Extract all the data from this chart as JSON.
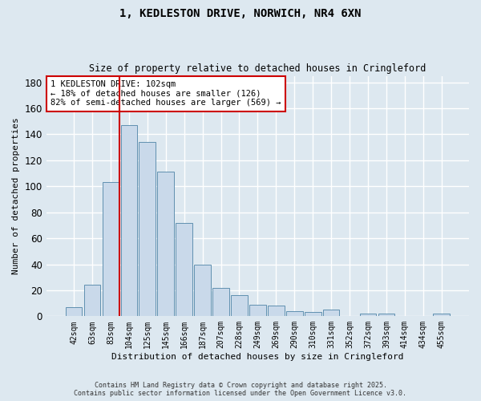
{
  "title": "1, KEDLESTON DRIVE, NORWICH, NR4 6XN",
  "subtitle": "Size of property relative to detached houses in Cringleford",
  "xlabel": "Distribution of detached houses by size in Cringleford",
  "ylabel": "Number of detached properties",
  "bin_labels": [
    "42sqm",
    "63sqm",
    "83sqm",
    "104sqm",
    "125sqm",
    "145sqm",
    "166sqm",
    "187sqm",
    "207sqm",
    "228sqm",
    "249sqm",
    "269sqm",
    "290sqm",
    "310sqm",
    "331sqm",
    "352sqm",
    "372sqm",
    "393sqm",
    "414sqm",
    "434sqm",
    "455sqm"
  ],
  "bar_values": [
    7,
    24,
    103,
    147,
    134,
    111,
    72,
    40,
    22,
    16,
    9,
    8,
    4,
    3,
    5,
    0,
    2,
    2,
    0,
    0,
    2
  ],
  "bar_color": "#c9d9ea",
  "bar_edge_color": "#6090b0",
  "vline_color": "#cc0000",
  "annotation_text": "1 KEDLESTON DRIVE: 102sqm\n← 18% of detached houses are smaller (126)\n82% of semi-detached houses are larger (569) →",
  "annotation_box_color": "#ffffff",
  "annotation_box_edge": "#cc0000",
  "bg_color": "#dde8f0",
  "plot_bg_color": "#dde8f0",
  "footer_line1": "Contains HM Land Registry data © Crown copyright and database right 2025.",
  "footer_line2": "Contains public sector information licensed under the Open Government Licence v3.0.",
  "ylim": [
    0,
    185
  ],
  "yticks": [
    0,
    20,
    40,
    60,
    80,
    100,
    120,
    140,
    160,
    180
  ]
}
